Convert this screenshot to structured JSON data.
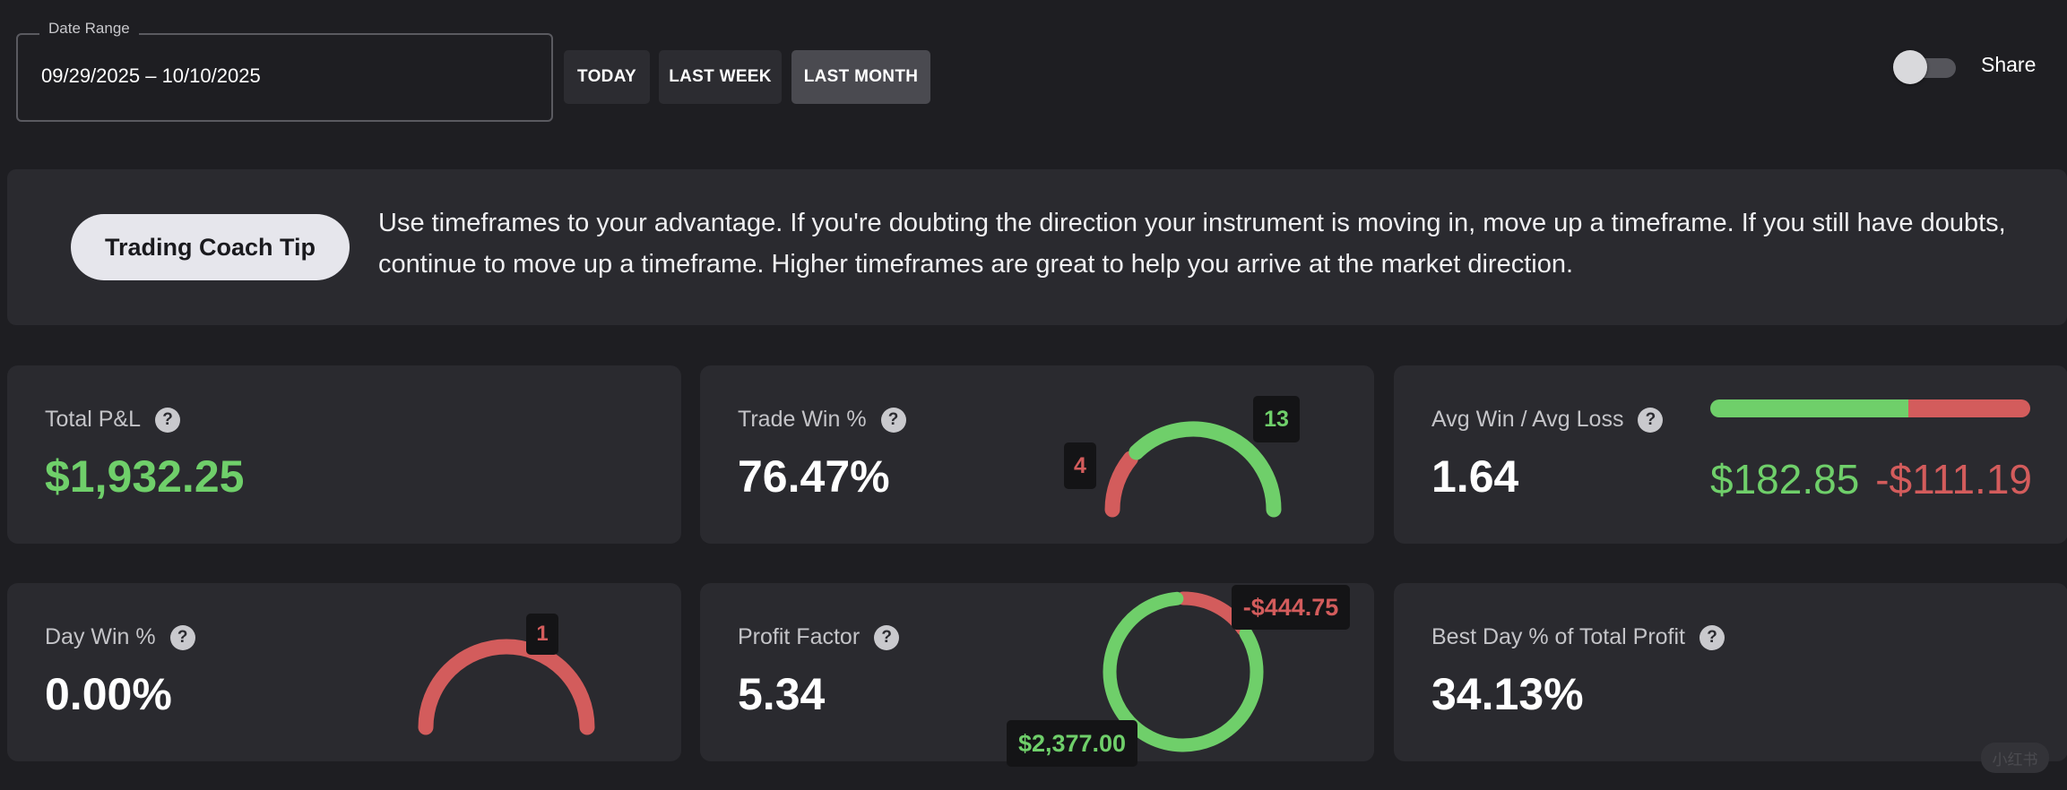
{
  "date_range": {
    "label": "Date Range",
    "value": "09/29/2025 – 10/10/2025"
  },
  "range_buttons": [
    {
      "label": "TODAY",
      "active": false
    },
    {
      "label": "LAST WEEK",
      "active": false
    },
    {
      "label": "LAST MONTH",
      "active": true
    }
  ],
  "share": {
    "label": "Share",
    "enabled": false
  },
  "tip": {
    "badge": "Trading Coach Tip",
    "text": "Use timeframes to your advantage. If you're doubting the direction your instrument is moving in, move up a timeframe. If you still have doubts, continue to move up a timeframe. Higher timeframes are great to help you arrive at the market direction."
  },
  "help_glyph": "?",
  "cards": {
    "total_pnl": {
      "title": "Total P&L",
      "value": "$1,932.25"
    },
    "trade_win": {
      "title": "Trade Win %",
      "value": "76.47%",
      "wins": 13,
      "losses": 4,
      "wins_label": "13",
      "losses_label": "4"
    },
    "avg_win_loss": {
      "title": "Avg Win / Avg Loss",
      "value": "1.64",
      "avg_win": "$182.85",
      "avg_loss": "-$111.19",
      "win_fraction": 0.62
    },
    "day_win": {
      "title": "Day Win %",
      "value": "0.00%",
      "wins": 0,
      "losses": 1,
      "losses_label": "1"
    },
    "profit_factor": {
      "title": "Profit Factor",
      "value": "5.34",
      "gross_profit": "$2,377.00",
      "gross_loss": "-$444.75",
      "profit_amount": 2377.0,
      "loss_amount": 444.75
    },
    "best_day": {
      "title": "Best Day % of Total Profit",
      "value": "34.13%"
    }
  },
  "colors": {
    "green": "#6fcf6a",
    "red": "#d35c5c",
    "background": "#1e1e22",
    "card": "#2a2a2f"
  },
  "watermark": "小红书"
}
